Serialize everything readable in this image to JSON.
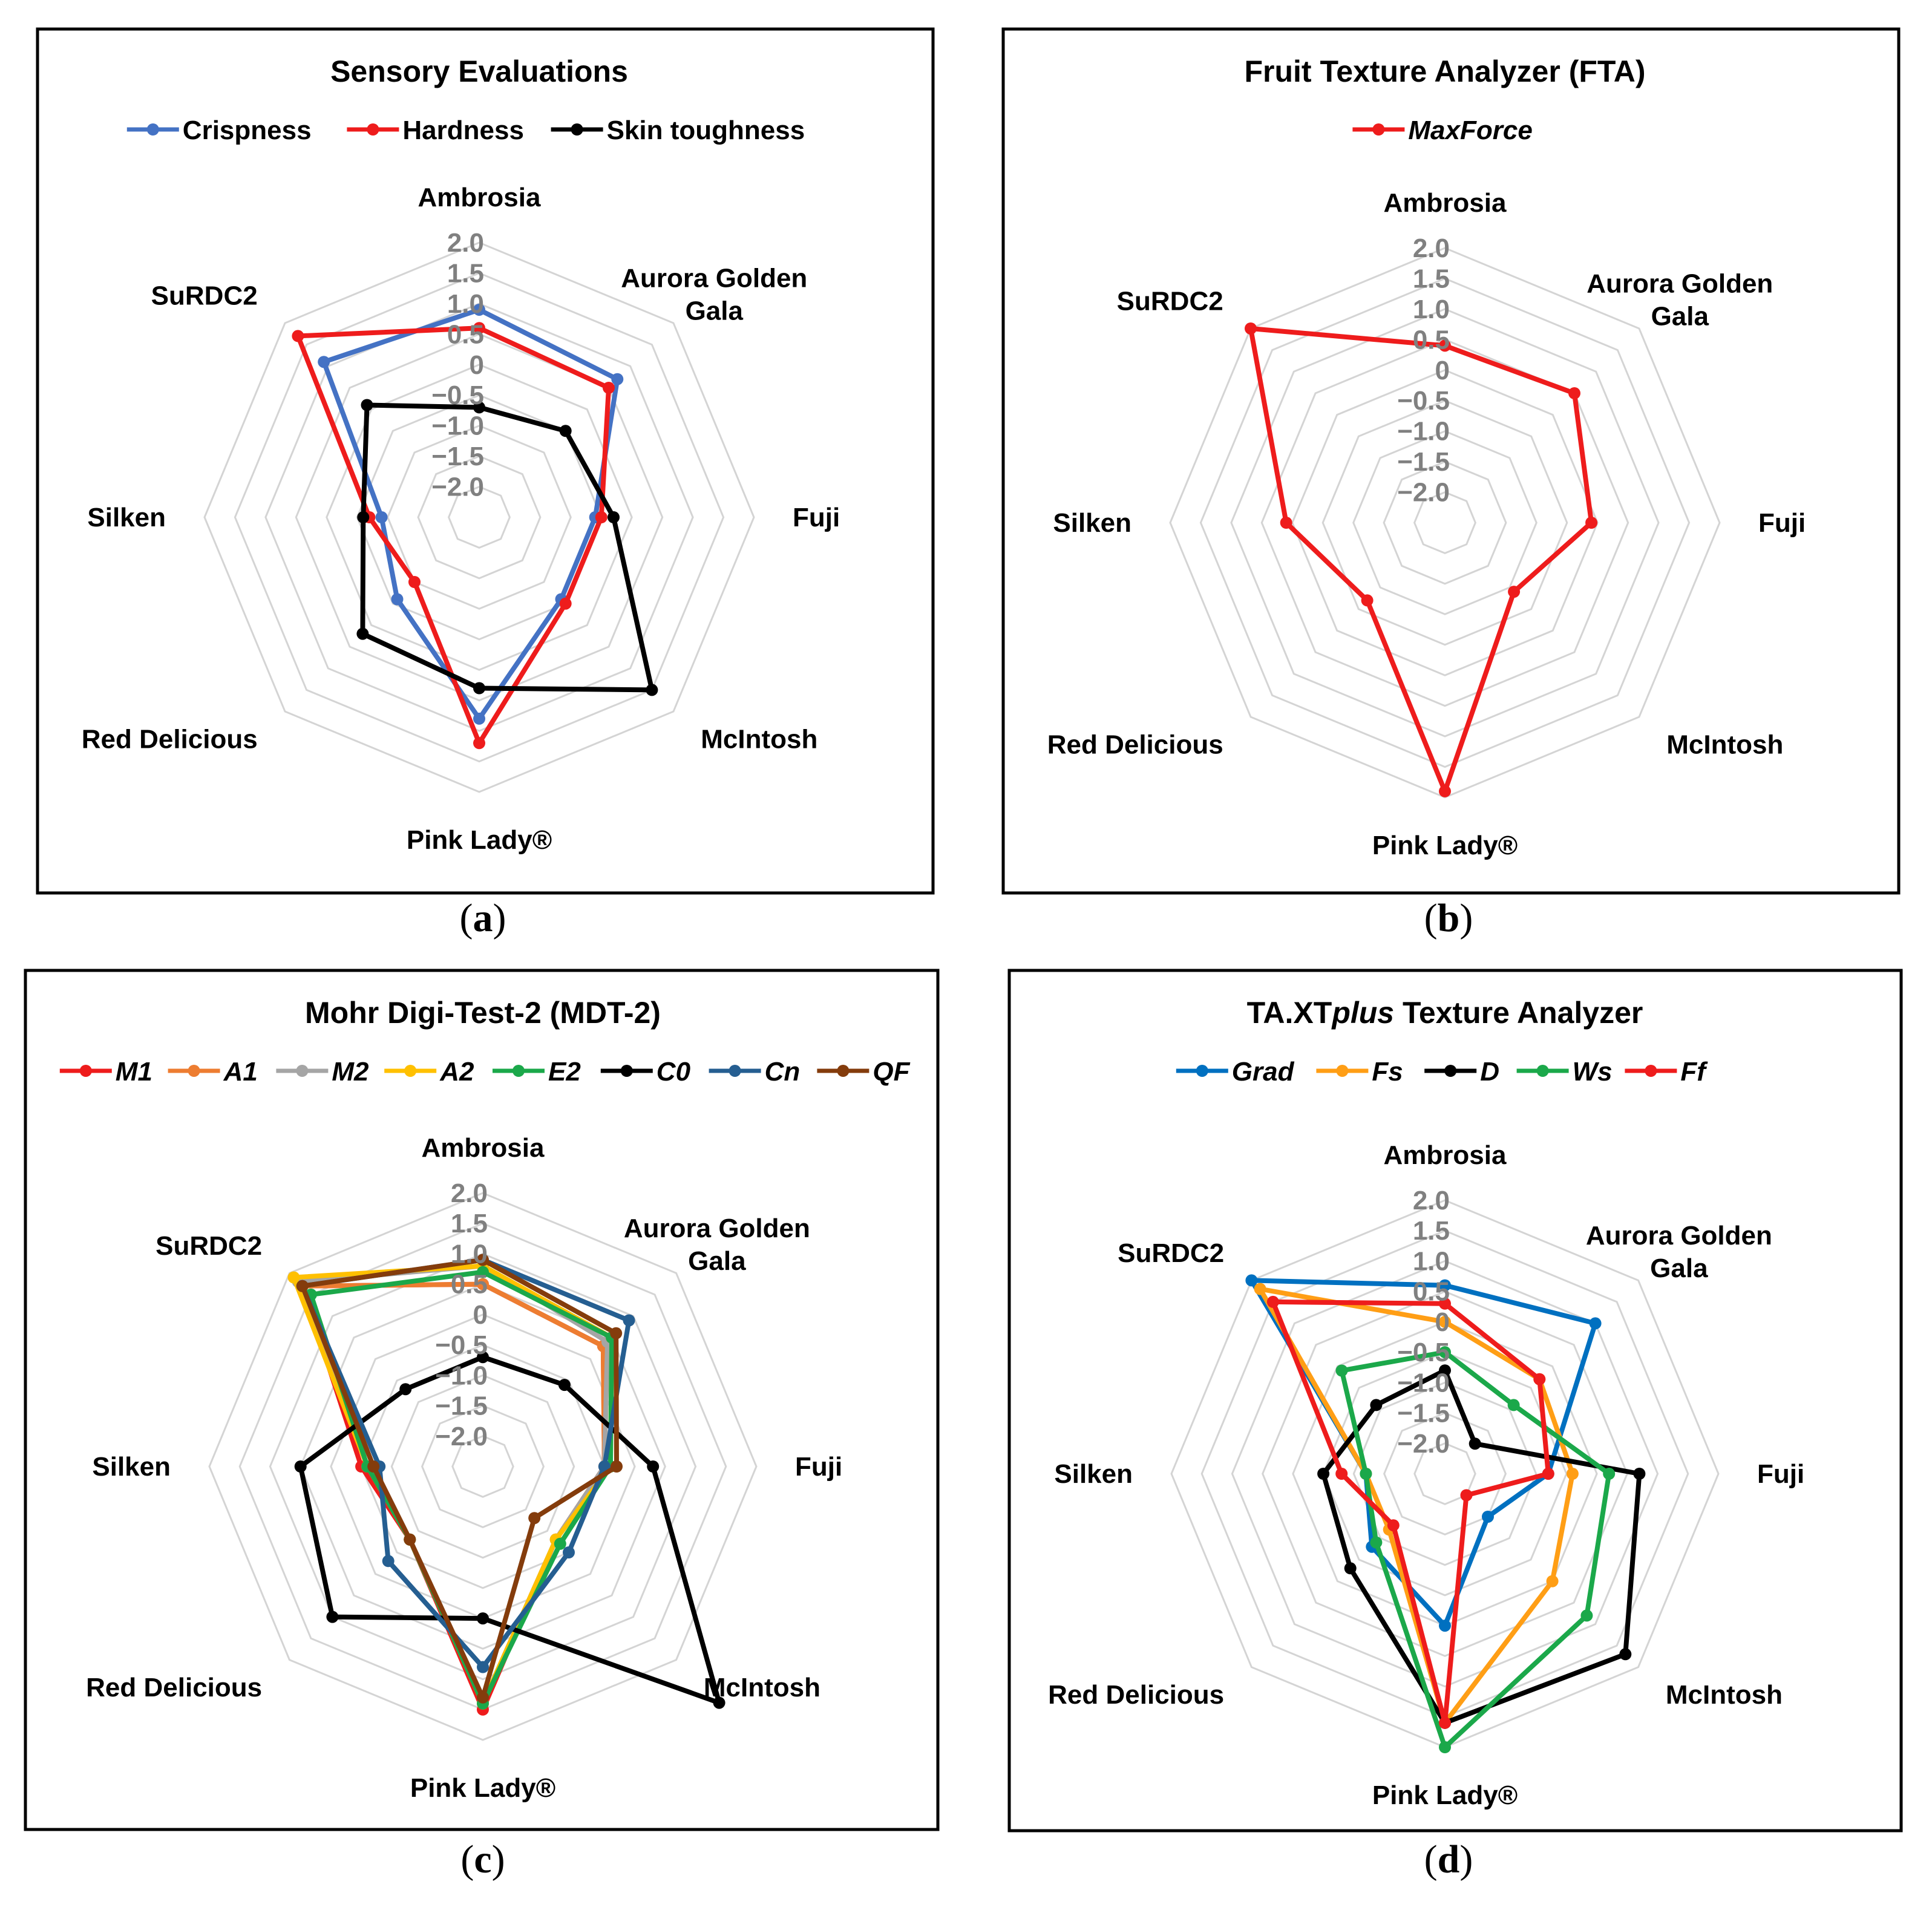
{
  "chart_data": [
    {
      "type": "radar",
      "title": "Sensory Evaluations",
      "panel_label": "a",
      "categories": [
        "Ambrosia",
        "Aurora Golden Gala",
        "Fuji",
        "McIntosh",
        "Pink Lady®",
        "Red Delicious",
        "Silken",
        "SuRDC2"
      ],
      "r_ticks": [
        "2.0",
        "1.5",
        "1.0",
        "0.5",
        "0",
        "−0.5",
        "−1.0",
        "−1.5",
        "−2.0"
      ],
      "r_range": [
        -2.5,
        2.0
      ],
      "legend_position": "top",
      "series": [
        {
          "name": "Crispness",
          "color": "#4472C4",
          "italic": false,
          "values": [
            0.9,
            0.7,
            -0.6,
            -0.6,
            0.8,
            -0.6,
            -0.9,
            1.1
          ]
        },
        {
          "name": "Hardness",
          "color": "#EE1C1C",
          "italic": false,
          "values": [
            0.6,
            0.5,
            -0.5,
            -0.5,
            1.2,
            -1.0,
            -0.7,
            1.7
          ]
        },
        {
          "name": "Skin toughness",
          "color": "#000000",
          "italic": false,
          "values": [
            -0.7,
            -0.5,
            -0.3,
            1.5,
            0.3,
            0.2,
            -0.6,
            0.1
          ]
        }
      ]
    },
    {
      "type": "radar",
      "title": "Fruit Texture Analyzer (FTA)",
      "panel_label": "b",
      "categories": [
        "Ambrosia",
        "Aurora Golden Gala",
        "Fuji",
        "McIntosh",
        "Pink Lady®",
        "Red Delicious",
        "Silken",
        "SuRDC2"
      ],
      "r_ticks": [
        "2.0",
        "1.5",
        "1.0",
        "0.5",
        "0",
        "−0.5",
        "−1.0",
        "−1.5",
        "−2.0"
      ],
      "r_range": [
        -2.5,
        2.0
      ],
      "legend_position": "top",
      "series": [
        {
          "name": "MaxForce",
          "color": "#EE1C1C",
          "italic": true,
          "values": [
            0.4,
            0.5,
            -0.1,
            -0.9,
            1.9,
            -0.7,
            0.1,
            2.0
          ]
        }
      ]
    },
    {
      "type": "radar",
      "title": "Mohr Digi-Test-2 (MDT-2)",
      "panel_label": "c",
      "categories": [
        "Ambrosia",
        "Aurora Golden Gala",
        "Fuji",
        "McIntosh",
        "Pink Lady®",
        "Red Delicious",
        "Silken",
        "SuRDC2"
      ],
      "r_ticks": [
        "2.0",
        "1.5",
        "1.0",
        "0.5",
        "0",
        "−0.5",
        "−1.0",
        "−1.5",
        "−2.0"
      ],
      "r_range": [
        -2.5,
        2.0
      ],
      "legend_position": "top",
      "series": [
        {
          "name": "M1",
          "color": "#EE1C1C",
          "italic": true,
          "values": [
            0.5,
            0.3,
            -0.5,
            -0.8,
            1.5,
            -0.8,
            -0.5,
            1.7
          ]
        },
        {
          "name": "A1",
          "color": "#ED7D31",
          "italic": true,
          "values": [
            0.5,
            0.3,
            -0.5,
            -0.8,
            1.4,
            -0.8,
            -0.6,
            1.7
          ]
        },
        {
          "name": "M2",
          "color": "#A5A5A5",
          "italic": true,
          "values": [
            0.8,
            0.4,
            -0.5,
            -0.8,
            1.4,
            -0.8,
            -0.6,
            1.8
          ]
        },
        {
          "name": "A2",
          "color": "#FFC000",
          "italic": true,
          "values": [
            0.8,
            0.5,
            -0.4,
            -0.8,
            1.4,
            -0.8,
            -0.6,
            1.9
          ]
        },
        {
          "name": "E2",
          "color": "#1BA84A",
          "italic": true,
          "values": [
            0.7,
            0.5,
            -0.4,
            -0.7,
            1.4,
            -0.8,
            -0.6,
            1.5
          ]
        },
        {
          "name": "C0",
          "color": "#000000",
          "italic": true,
          "values": [
            -0.7,
            -0.6,
            0.3,
            3.0,
            0.0,
            1.0,
            0.5,
            -0.7
          ]
        },
        {
          "name": "Cn",
          "color": "#255E91",
          "italic": true,
          "values": [
            0.9,
            0.9,
            -0.5,
            -0.5,
            0.8,
            -0.3,
            -0.8,
            1.7
          ]
        },
        {
          "name": "QF",
          "color": "#843C0C",
          "italic": true,
          "values": [
            0.9,
            0.6,
            -0.3,
            -1.3,
            1.3,
            -0.8,
            -0.7,
            1.7
          ]
        }
      ]
    },
    {
      "type": "radar",
      "title": "TA.XTplus Texture Analyzer",
      "title_parts": [
        "TA.XT",
        "plus",
        " Texture Analyzer"
      ],
      "panel_label": "d",
      "categories": [
        "Ambrosia",
        "Aurora Golden Gala",
        "Fuji",
        "McIntosh",
        "Pink Lady®",
        "Red Delicious",
        "Silken",
        "SuRDC2"
      ],
      "r_ticks": [
        "2.0",
        "1.5",
        "1.0",
        "0.5",
        "0",
        "−0.5",
        "−1.0",
        "−1.5",
        "−2.0"
      ],
      "r_range": [
        -2.5,
        2.0
      ],
      "legend_position": "top",
      "series": [
        {
          "name": "Grad",
          "color": "#0070C0",
          "italic": true,
          "values": [
            0.6,
            1.0,
            -0.8,
            -1.5,
            0.0,
            -0.8,
            -1.2,
            2.0
          ]
        },
        {
          "name": "Fs",
          "color": "#FF9E15",
          "italic": true,
          "values": [
            0.0,
            -0.3,
            -0.4,
            0.0,
            1.6,
            -1.2,
            -1.2,
            1.8
          ]
        },
        {
          "name": "D",
          "color": "#000000",
          "italic": true,
          "values": [
            -0.8,
            -1.8,
            0.7,
            1.7,
            1.6,
            -0.3,
            -0.5,
            -0.9
          ]
        },
        {
          "name": "Ws",
          "color": "#1BA84A",
          "italic": true,
          "values": [
            -0.5,
            -0.9,
            0.2,
            0.8,
            2.0,
            -0.9,
            -1.2,
            -0.1
          ]
        },
        {
          "name": "Ff",
          "color": "#EE1C1C",
          "italic": true,
          "values": [
            0.3,
            -0.3,
            -0.8,
            -2.0,
            1.6,
            -1.3,
            -0.8,
            1.5
          ]
        }
      ]
    }
  ]
}
